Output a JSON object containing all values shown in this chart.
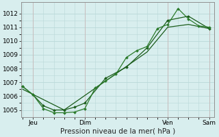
{
  "background_color": "#d8eeee",
  "grid_color": "#b8d8d8",
  "grid_color_minor": "#cce4e4",
  "line_color_dark": "#1a5c1a",
  "line_color_med": "#2a7a2a",
  "xlabel": "Pression niveau de la mer( hPa )",
  "ylim": [
    1004.5,
    1012.8
  ],
  "yticks": [
    1005,
    1006,
    1007,
    1008,
    1009,
    1010,
    1011,
    1012
  ],
  "xlim": [
    -2,
    222
  ],
  "x_tick_pos_list": [
    12,
    72,
    168,
    216
  ],
  "x_tick_label_list": [
    "Jeu",
    "Dim",
    "Ven",
    "Sam"
  ],
  "vline_positions": [
    12,
    72,
    168,
    216
  ],
  "series1": {
    "x": [
      0,
      12,
      24,
      36,
      48,
      60,
      72,
      84,
      96,
      108,
      120,
      132,
      144,
      156,
      168,
      180,
      192,
      204,
      216
    ],
    "y": [
      1006.7,
      1006.1,
      1005.1,
      1004.8,
      1004.8,
      1004.85,
      1005.1,
      1006.6,
      1007.1,
      1007.6,
      1008.8,
      1009.3,
      1009.6,
      1010.9,
      1011.2,
      1012.35,
      1011.6,
      1011.1,
      1011.0
    ]
  },
  "series2": {
    "x": [
      0,
      12,
      24,
      36,
      48,
      60,
      72,
      96,
      120,
      144,
      168,
      192,
      216
    ],
    "y": [
      1006.7,
      1006.1,
      1005.3,
      1005.0,
      1005.0,
      1005.2,
      1005.5,
      1007.3,
      1008.1,
      1009.5,
      1011.5,
      1011.8,
      1010.9
    ]
  },
  "series3": {
    "x": [
      0,
      48,
      96,
      144,
      168,
      192,
      216
    ],
    "y": [
      1006.5,
      1005.0,
      1007.1,
      1009.2,
      1011.0,
      1011.2,
      1010.9
    ]
  }
}
